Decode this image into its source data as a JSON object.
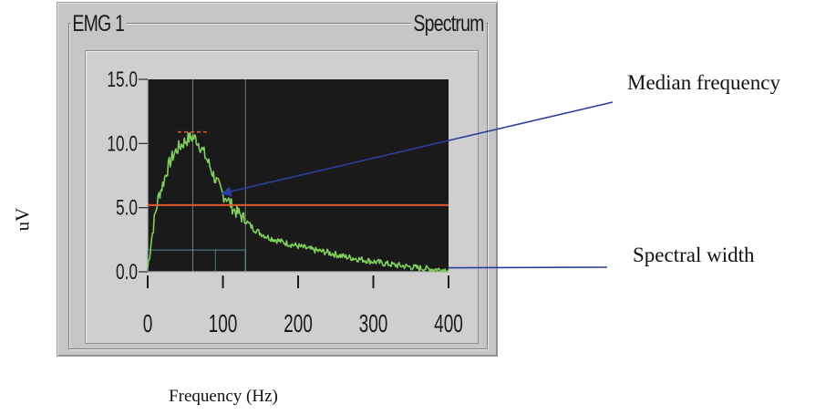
{
  "chart_data": {
    "type": "line",
    "panel_title": "EMG 1",
    "mode_label": "Spectrum",
    "xlabel": "Frequency (Hz)",
    "ylabel": "uV",
    "xlim": [
      0,
      400
    ],
    "ylim": [
      0,
      15
    ],
    "x_ticks": [
      0,
      100,
      200,
      300,
      400
    ],
    "x_tick_labels": [
      "0",
      "100",
      "200",
      "300",
      "400"
    ],
    "y_ticks": [
      0,
      5,
      10,
      15
    ],
    "y_tick_labels": [
      "0.0",
      "5.0",
      "10.0",
      "15.0"
    ],
    "series": [
      {
        "values": [
          [
            0,
            0.3
          ],
          [
            5,
            2.5
          ],
          [
            10,
            4.5
          ],
          [
            15,
            6.0
          ],
          [
            20,
            6.8
          ],
          [
            25,
            7.8
          ],
          [
            30,
            8.6
          ],
          [
            35,
            9.2
          ],
          [
            40,
            9.6
          ],
          [
            45,
            9.9
          ],
          [
            50,
            10.2
          ],
          [
            55,
            10.4
          ],
          [
            60,
            10.5
          ],
          [
            65,
            10.3
          ],
          [
            70,
            9.8
          ],
          [
            75,
            9.2
          ],
          [
            80,
            8.6
          ],
          [
            85,
            7.9
          ],
          [
            90,
            7.2
          ],
          [
            95,
            6.6
          ],
          [
            100,
            6.0
          ],
          [
            105,
            5.8
          ],
          [
            110,
            5.3
          ],
          [
            115,
            4.8
          ],
          [
            120,
            4.6
          ],
          [
            130,
            4.0
          ],
          [
            140,
            3.4
          ],
          [
            150,
            3.0
          ],
          [
            160,
            2.7
          ],
          [
            180,
            2.3
          ],
          [
            200,
            2.0
          ],
          [
            220,
            1.7
          ],
          [
            240,
            1.5
          ],
          [
            260,
            1.2
          ],
          [
            280,
            1.0
          ],
          [
            300,
            0.8
          ],
          [
            320,
            0.6
          ],
          [
            340,
            0.45
          ],
          [
            360,
            0.3
          ],
          [
            380,
            0.2
          ],
          [
            400,
            0.15
          ]
        ],
        "color": "#7fd15a"
      }
    ],
    "reference_lines": {
      "amplitude_level": 5.2,
      "peak_band": {
        "x": [
          40,
          80
        ],
        "y": 10.9
      },
      "median_frequency_marker": 60,
      "band_edges": [
        0,
        130
      ],
      "spectral_width_level": 1.7
    },
    "annotations": [
      {
        "text": "Median frequency",
        "target": [
          100,
          6.1
        ]
      },
      {
        "text": "Spectral width",
        "target": [
          400,
          0.1
        ]
      }
    ],
    "grid": false,
    "colors": {
      "plot_background": "#1a1a1a",
      "spectrum": "#7fd15a",
      "reference": "#e0582e",
      "marker": "#c8c8c8",
      "band": "#5ea0a8",
      "arrow": "#2b3f9e"
    }
  }
}
